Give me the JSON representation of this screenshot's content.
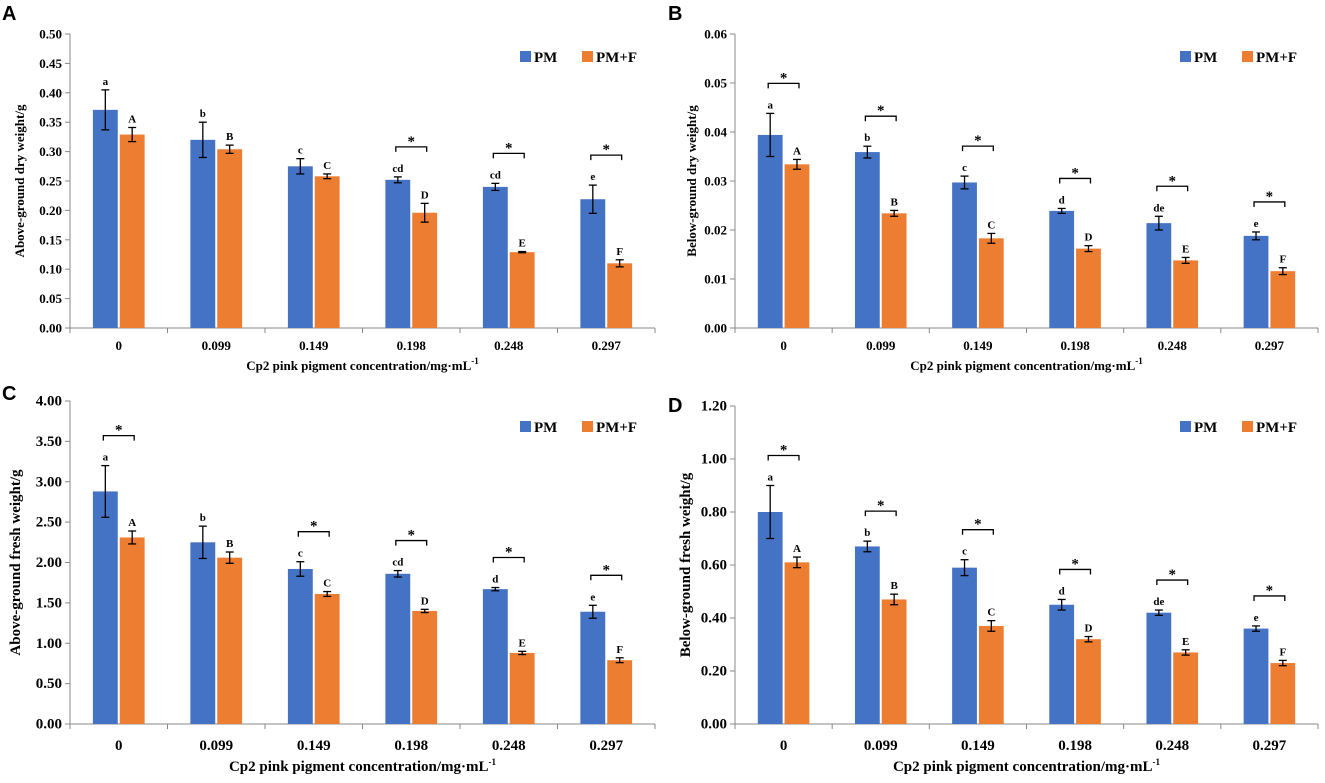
{
  "colors": {
    "pm": "#4472C4",
    "pmf": "#ED7D31"
  },
  "chart_data": [
    {
      "panel": "A",
      "type": "bar",
      "xlabel": "Cp2 pink pigment concentration/mg·mL",
      "xlabel_sup": "-1",
      "ylabel": "Above-ground  dry weight/g",
      "categories": [
        "0",
        "0.099",
        "0.149",
        "0.198",
        "0.248",
        "0.297"
      ],
      "ylim": [
        0,
        0.5
      ],
      "yticks": [
        "0.00",
        "0.05",
        "0.10",
        "0.15",
        "0.20",
        "0.25",
        "0.30",
        "0.35",
        "0.40",
        "0.45",
        "0.50"
      ],
      "legend": [
        "PM",
        "PM+F"
      ],
      "legend_position": "top-right",
      "star_symbol": "*",
      "series": [
        {
          "name": "PM",
          "values": [
            0.371,
            0.32,
            0.275,
            0.252,
            0.24,
            0.219
          ],
          "errors": [
            0.034,
            0.03,
            0.013,
            0.005,
            0.006,
            0.024
          ],
          "letters": [
            "a",
            "b",
            "c",
            "cd",
            "cd",
            "e"
          ]
        },
        {
          "name": "PM+F",
          "values": [
            0.329,
            0.304,
            0.258,
            0.196,
            0.129,
            0.11
          ],
          "errors": [
            0.012,
            0.007,
            0.004,
            0.016,
            0.001,
            0.006
          ],
          "letters": [
            "A",
            "B",
            "C",
            "D",
            "E",
            "F"
          ]
        }
      ],
      "significant": [
        false,
        false,
        false,
        true,
        true,
        true
      ]
    },
    {
      "panel": "B",
      "type": "bar",
      "xlabel": "Cp2 pink pigment concentration/mg·mL",
      "xlabel_sup": "-1",
      "ylabel": "Below-ground  dry weight/g",
      "categories": [
        "0",
        "0.099",
        "0.149",
        "0.198",
        "0.248",
        "0.297"
      ],
      "ylim": [
        0,
        0.06
      ],
      "yticks": [
        "0.00",
        "0.01",
        "0.02",
        "0.03",
        "0.04",
        "0.05",
        "0.06"
      ],
      "legend": [
        "PM",
        "PM+F"
      ],
      "legend_position": "top-right",
      "star_symbol": "*",
      "series": [
        {
          "name": "PM",
          "values": [
            0.0394,
            0.0359,
            0.0297,
            0.0239,
            0.0214,
            0.0188
          ],
          "errors": [
            0.0044,
            0.0012,
            0.0013,
            0.0005,
            0.0014,
            0.0008
          ],
          "letters": [
            "a",
            "b",
            "c",
            "d",
            "de",
            "e"
          ]
        },
        {
          "name": "PM+F",
          "values": [
            0.0334,
            0.0234,
            0.0183,
            0.0162,
            0.0138,
            0.0116
          ],
          "errors": [
            0.001,
            0.0006,
            0.001,
            0.0006,
            0.0006,
            0.0007
          ],
          "letters": [
            "A",
            "B",
            "C",
            "D",
            "E",
            "F"
          ]
        }
      ],
      "significant": [
        true,
        true,
        true,
        true,
        true,
        true
      ]
    },
    {
      "panel": "C",
      "type": "bar",
      "xlabel": "Cp2 pink pigment concentration/mg·mL",
      "xlabel_sup": "-1",
      "ylabel": "Above-ground  fresh weight/g",
      "categories": [
        "0",
        "0.099",
        "0.149",
        "0.198",
        "0.248",
        "0.297"
      ],
      "ylim": [
        0,
        4.0
      ],
      "yticks": [
        "0.00",
        "0.50",
        "1.00",
        "1.50",
        "2.00",
        "2.50",
        "3.00",
        "3.50",
        "4.00"
      ],
      "legend": [
        "PM",
        "PM+F"
      ],
      "legend_position": "top-right",
      "star_symbol": "*",
      "series": [
        {
          "name": "PM",
          "values": [
            2.88,
            2.25,
            1.92,
            1.86,
            1.67,
            1.39
          ],
          "errors": [
            0.32,
            0.2,
            0.09,
            0.04,
            0.02,
            0.08
          ],
          "letters": [
            "a",
            "b",
            "c",
            "cd",
            "d",
            "e"
          ]
        },
        {
          "name": "PM+F",
          "values": [
            2.31,
            2.06,
            1.61,
            1.4,
            0.88,
            0.79
          ],
          "errors": [
            0.08,
            0.07,
            0.03,
            0.02,
            0.02,
            0.03
          ],
          "letters": [
            "A",
            "B",
            "C",
            "D",
            "E",
            "F"
          ]
        }
      ],
      "significant": [
        true,
        false,
        true,
        true,
        true,
        true
      ]
    },
    {
      "panel": "D",
      "type": "bar",
      "xlabel": "Cp2 pink pigment concentration/mg·mL",
      "xlabel_sup": "-1",
      "ylabel": "Below-ground  fresh weight/g",
      "categories": [
        "0",
        "0.099",
        "0.149",
        "0.198",
        "0.248",
        "0.297"
      ],
      "ylim": [
        0,
        1.2
      ],
      "yticks": [
        "0.00",
        "0.20",
        "0.40",
        "0.60",
        "0.80",
        "1.00",
        "1.20"
      ],
      "legend": [
        "PM",
        "PM+F"
      ],
      "legend_position": "top-right",
      "star_symbol": "*",
      "series": [
        {
          "name": "PM",
          "values": [
            0.8,
            0.67,
            0.59,
            0.45,
            0.42,
            0.36
          ],
          "errors": [
            0.1,
            0.02,
            0.03,
            0.02,
            0.01,
            0.01
          ],
          "letters": [
            "a",
            "b",
            "c",
            "d",
            "de",
            "e"
          ]
        },
        {
          "name": "PM+F",
          "values": [
            0.61,
            0.47,
            0.37,
            0.32,
            0.27,
            0.23
          ],
          "errors": [
            0.02,
            0.02,
            0.02,
            0.01,
            0.01,
            0.01
          ],
          "letters": [
            "A",
            "B",
            "C",
            "D",
            "E",
            "F"
          ]
        }
      ],
      "significant": [
        true,
        true,
        true,
        true,
        true,
        true
      ]
    }
  ]
}
